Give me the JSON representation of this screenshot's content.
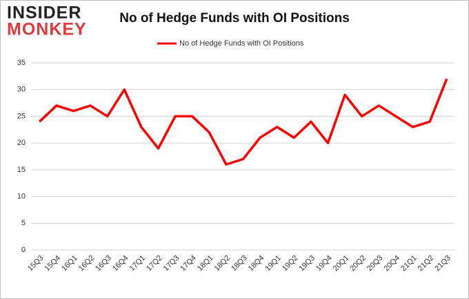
{
  "logo": {
    "line1": "INSIDER",
    "line2": "MONKEY"
  },
  "chart_data": {
    "type": "line",
    "title": "No of Hedge Funds with OI Positions",
    "categories": [
      "15Q3",
      "15Q4",
      "16Q1",
      "16Q2",
      "16Q3",
      "16Q4",
      "17Q1",
      "17Q2",
      "17Q3",
      "17Q4",
      "18Q1",
      "18Q2",
      "18Q3",
      "18Q4",
      "19Q1",
      "19Q2",
      "19Q3",
      "19Q4",
      "20Q1",
      "20Q2",
      "20Q3",
      "20Q4",
      "21Q1",
      "21Q2",
      "21Q3"
    ],
    "series": [
      {
        "name": "No of Hedge Funds with OI Positions",
        "color": "#ff0000",
        "values": [
          24,
          27,
          26,
          27,
          25,
          30,
          23,
          19,
          25,
          25,
          22,
          16,
          17,
          21,
          23,
          21,
          24,
          20,
          29,
          25,
          27,
          25,
          23,
          24,
          32
        ]
      }
    ],
    "ylim": [
      0,
      35
    ],
    "yticks": [
      0,
      5,
      10,
      15,
      20,
      25,
      30,
      35
    ],
    "grid": true,
    "legend": "top"
  }
}
